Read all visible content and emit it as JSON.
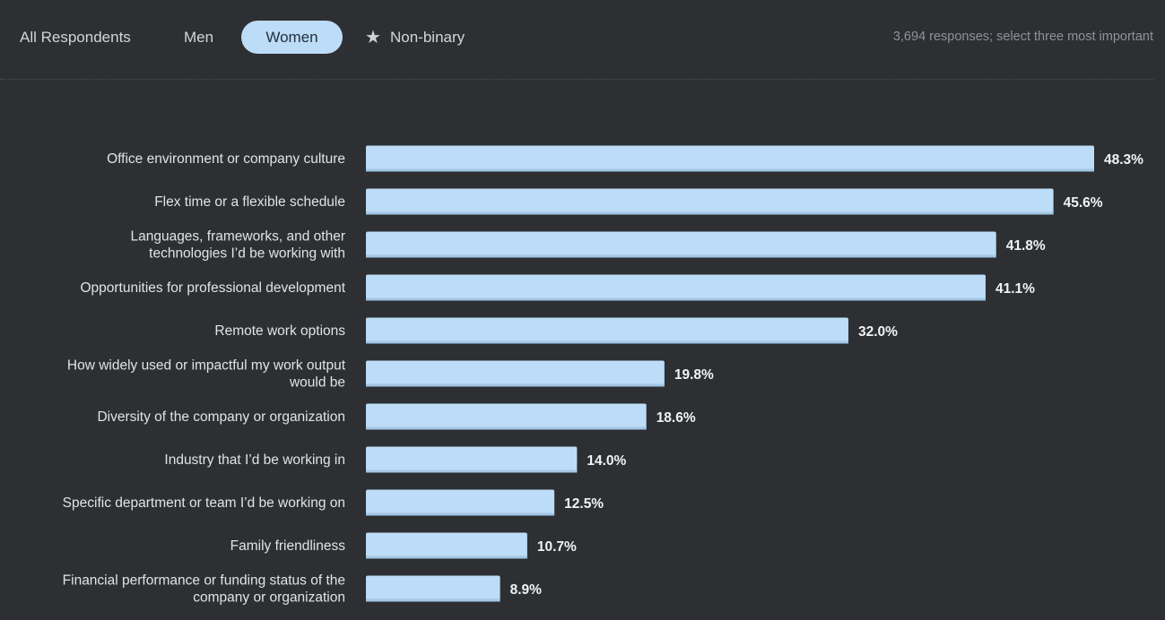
{
  "tabs": {
    "all": "All Respondents",
    "men": "Men",
    "women": "Women",
    "nonbinary": "Non-binary",
    "active": "Women"
  },
  "meta_note": "3,694 responses; select three most important",
  "colors": {
    "background": "#2d2f33",
    "bar": "#bcdcf7",
    "active_tab": "#bcdcf7"
  },
  "icons": {
    "nonbinary_tab": "star-icon"
  },
  "chart_data": {
    "type": "bar",
    "orientation": "horizontal",
    "categories": [
      "Office environment or company culture",
      "Flex time or a flexible schedule",
      "Languages, frameworks, and other technologies I’d be working with",
      "Opportunities for professional development",
      "Remote work options",
      "How widely used or impactful my work output would be",
      "Diversity of the company or organization",
      "Industry that I’d be working in",
      "Specific department or team I’d be working on",
      "Family friendliness",
      "Financial performance or funding status of the company or organization"
    ],
    "category_lines": [
      [
        "Office environment or company culture"
      ],
      [
        "Flex time or a flexible schedule"
      ],
      [
        "Languages, frameworks, and other",
        "technologies I’d be working with"
      ],
      [
        "Opportunities for professional development"
      ],
      [
        "Remote work options"
      ],
      [
        "How widely used or impactful my work output",
        "would be"
      ],
      [
        "Diversity of the company or organization"
      ],
      [
        "Industry that I’d be working in"
      ],
      [
        "Specific department or team I’d be working on"
      ],
      [
        "Family friendliness"
      ],
      [
        "Financial performance or funding status of the",
        "company or organization"
      ]
    ],
    "values": [
      48.3,
      45.6,
      41.8,
      41.1,
      32.0,
      19.8,
      18.6,
      14.0,
      12.5,
      10.7,
      8.9
    ],
    "value_labels": [
      "48.3%",
      "45.6%",
      "41.8%",
      "41.1%",
      "32.0%",
      "19.8%",
      "18.6%",
      "14.0%",
      "12.5%",
      "10.7%",
      "8.9%"
    ],
    "title": "",
    "xlabel": "",
    "ylabel": "",
    "xlim": [
      0,
      48.3
    ],
    "grid": false,
    "legend": "none"
  }
}
